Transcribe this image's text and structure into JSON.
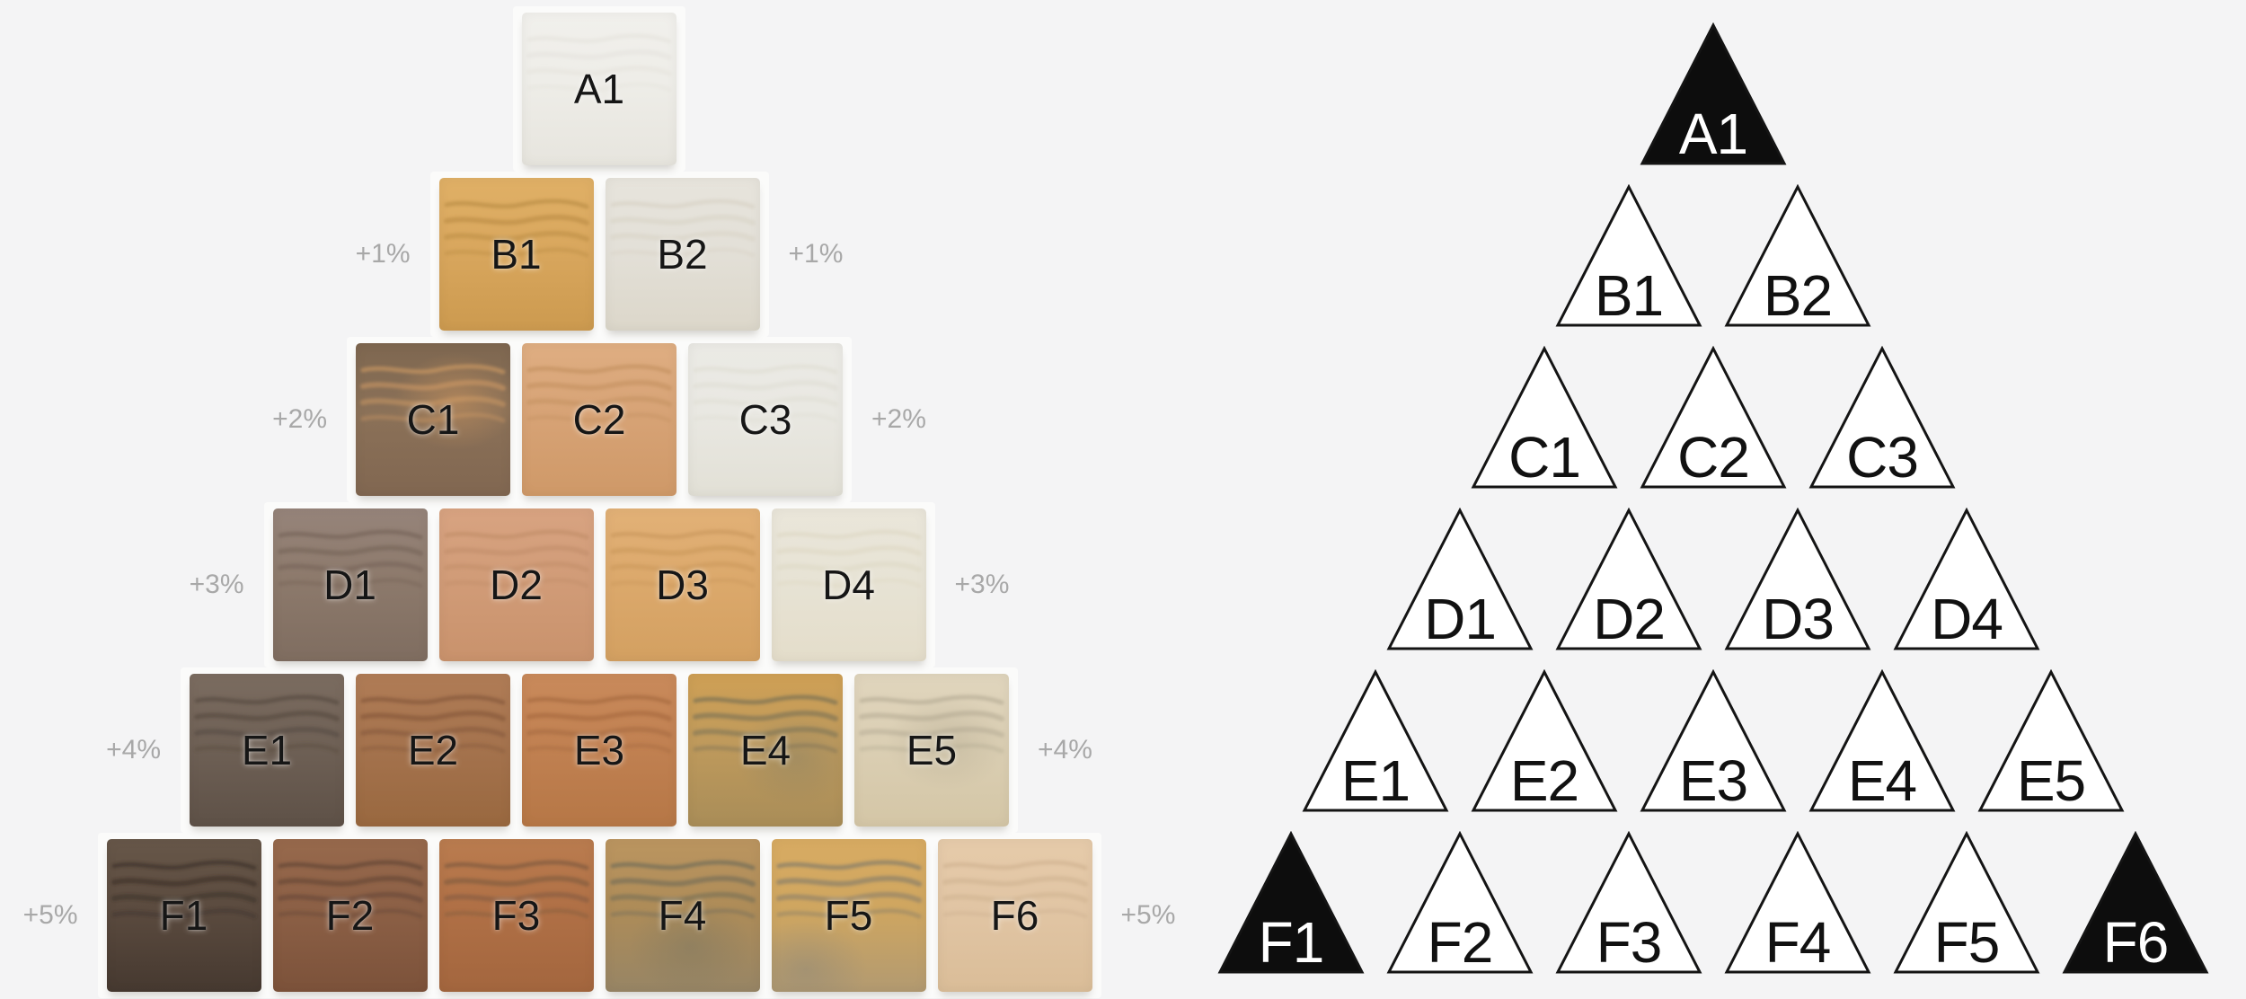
{
  "palette": {
    "page_bg": "#f4f4f5",
    "photo_bg": "#fbfbfa",
    "tile_label": "#161616",
    "percent_label": "#a8a8a8",
    "tri_stroke": "#141414",
    "tri_fill": "#ffffff",
    "tri_fill_dark": "#0d0d0d",
    "tri_label": "#111111",
    "tri_label_dark": "#ffffff"
  },
  "left_pyramid": {
    "rows": [
      {
        "percent_left": "",
        "percent_right": "",
        "tiles": [
          {
            "label": "A1",
            "top": "#f1f0ec",
            "base": "#eeede8",
            "bottom": "#e7e5de",
            "streak": "#dedbd2",
            "streak_opacity": 0.35
          }
        ]
      },
      {
        "percent_left": "+1%",
        "percent_right": "+1%",
        "tiles": [
          {
            "label": "B1",
            "top": "#e0b066",
            "base": "#d9a75e",
            "bottom": "#cc9a4f",
            "streak": "#b3863e",
            "streak_opacity": 0.55
          },
          {
            "label": "B2",
            "top": "#e7e4dc",
            "base": "#e3e0d8",
            "bottom": "#dcd7ca",
            "streak": "#cfc9b9",
            "streak_opacity": 0.4
          }
        ]
      },
      {
        "percent_left": "+2%",
        "percent_right": "+2%",
        "tiles": [
          {
            "label": "C1",
            "top": "#7e6750",
            "base": "#8b7158",
            "bottom": "#816751",
            "streak": "#d09c64",
            "streak_opacity": 0.6,
            "mottle": "#d89c60",
            "mottle_pos": "65% 38%"
          },
          {
            "label": "C2",
            "top": "#dfae82",
            "base": "#d7a376",
            "bottom": "#cf9968",
            "streak": "#bc8a58",
            "streak_opacity": 0.5
          },
          {
            "label": "C3",
            "top": "#ebeae5",
            "base": "#e9e8e2",
            "bottom": "#e2e0d6",
            "streak": "#d6d3c6",
            "streak_opacity": 0.35
          }
        ]
      },
      {
        "percent_left": "+3%",
        "percent_right": "+3%",
        "tiles": [
          {
            "label": "D1",
            "top": "#96847a",
            "base": "#8d7a6c",
            "bottom": "#7f6d60",
            "streak": "#6c5a4e",
            "streak_opacity": 0.5
          },
          {
            "label": "D2",
            "top": "#d8a381",
            "base": "#d19c78",
            "bottom": "#c9926c",
            "streak": "#b98560",
            "streak_opacity": 0.45
          },
          {
            "label": "D3",
            "top": "#e2b177",
            "base": "#dca96c",
            "bottom": "#d3a061",
            "streak": "#c39255",
            "streak_opacity": 0.5
          },
          {
            "label": "D4",
            "top": "#eae6da",
            "base": "#e7e3d5",
            "bottom": "#e4ddca",
            "streak": "#d8d0b8",
            "streak_opacity": 0.4
          }
        ]
      },
      {
        "percent_left": "+4%",
        "percent_right": "+4%",
        "tiles": [
          {
            "label": "E1",
            "top": "#7b6c60",
            "base": "#6f6156",
            "bottom": "#5e5147",
            "streak": "#4e4238",
            "streak_opacity": 0.55
          },
          {
            "label": "E2",
            "top": "#b07c56",
            "base": "#a5734e",
            "bottom": "#99683f",
            "streak": "#7c5034",
            "streak_opacity": 0.55
          },
          {
            "label": "E3",
            "top": "#c98a5b",
            "base": "#c18152",
            "bottom": "#b67746",
            "streak": "#9c6038",
            "streak_opacity": 0.5
          },
          {
            "label": "E4",
            "top": "#cfa055",
            "base": "#bf9a5c",
            "bottom": "#a98d58",
            "streak": "#6e6a54",
            "streak_opacity": 0.6,
            "mottle": "#8a8266",
            "mottle_pos": "70% 55%"
          },
          {
            "label": "E5",
            "top": "#e0d5bd",
            "base": "#dbcfb4",
            "bottom": "#d4c6a6",
            "streak": "#a49b85",
            "streak_opacity": 0.45,
            "mottle": "#b5ab92",
            "mottle_pos": "60% 45%"
          }
        ]
      },
      {
        "percent_left": "+5%",
        "percent_right": "+5%",
        "tiles": [
          {
            "label": "F1",
            "top": "#675749",
            "base": "#5b4b3f",
            "bottom": "#463930",
            "streak": "#352b23",
            "streak_opacity": 0.6
          },
          {
            "label": "F2",
            "top": "#97694c",
            "base": "#8c6046",
            "bottom": "#7c523a",
            "streak": "#5c4030",
            "streak_opacity": 0.6
          },
          {
            "label": "F3",
            "top": "#ba7c4f",
            "base": "#b07046",
            "bottom": "#a3663e",
            "streak": "#77563c",
            "streak_opacity": 0.6
          },
          {
            "label": "F4",
            "top": "#bb9560",
            "base": "#ae8c58",
            "bottom": "#978565",
            "streak": "#6d6a57",
            "streak_opacity": 0.65,
            "mottle": "#7b7661",
            "mottle_pos": "55% 70%"
          },
          {
            "label": "F5",
            "top": "#d8ab62",
            "base": "#cfa660",
            "bottom": "#b29a71",
            "streak": "#77746a",
            "streak_opacity": 0.6,
            "mottle": "#8a8578",
            "mottle_pos": "22% 85%"
          },
          {
            "label": "F6",
            "top": "#e6cbaa",
            "base": "#e1c5a4",
            "bottom": "#dabd98",
            "streak": "#c2a583",
            "streak_opacity": 0.4
          }
        ]
      }
    ]
  },
  "right_pyramid": {
    "rows": [
      {
        "cells": [
          {
            "label": "A1",
            "filled": true
          }
        ]
      },
      {
        "cells": [
          {
            "label": "B1",
            "filled": false
          },
          {
            "label": "B2",
            "filled": false
          }
        ]
      },
      {
        "cells": [
          {
            "label": "C1",
            "filled": false
          },
          {
            "label": "C2",
            "filled": false
          },
          {
            "label": "C3",
            "filled": false
          }
        ]
      },
      {
        "cells": [
          {
            "label": "D1",
            "filled": false
          },
          {
            "label": "D2",
            "filled": false
          },
          {
            "label": "D3",
            "filled": false
          },
          {
            "label": "D4",
            "filled": false
          }
        ]
      },
      {
        "cells": [
          {
            "label": "E1",
            "filled": false
          },
          {
            "label": "E2",
            "filled": false
          },
          {
            "label": "E3",
            "filled": false
          },
          {
            "label": "E4",
            "filled": false
          },
          {
            "label": "E5",
            "filled": false
          }
        ]
      },
      {
        "cells": [
          {
            "label": "F1",
            "filled": true
          },
          {
            "label": "F2",
            "filled": false
          },
          {
            "label": "F3",
            "filled": false
          },
          {
            "label": "F4",
            "filled": false
          },
          {
            "label": "F5",
            "filled": false
          },
          {
            "label": "F6",
            "filled": true
          }
        ]
      }
    ]
  }
}
